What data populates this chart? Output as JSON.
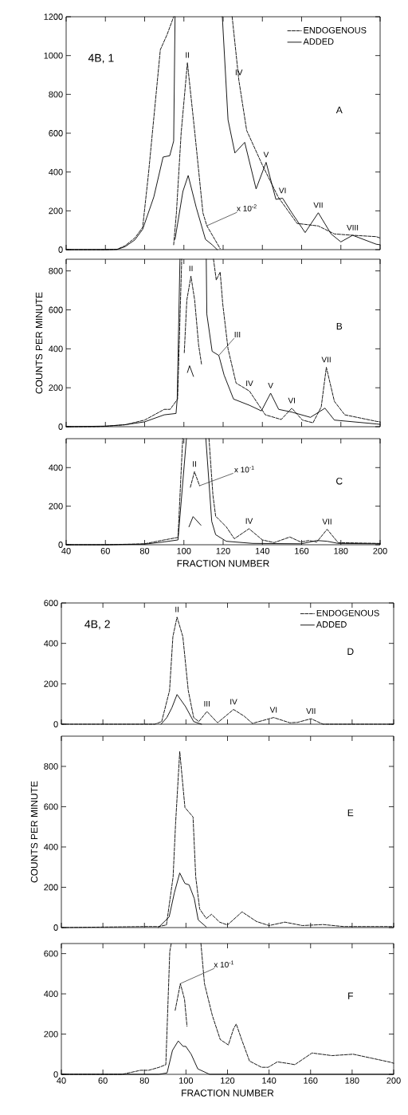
{
  "chart_data": [
    {
      "type": "line",
      "xlim": [
        40,
        200
      ],
      "xticks": [
        40,
        60,
        80,
        100,
        120,
        140,
        160,
        180,
        200
      ],
      "ylim": [
        0,
        1200
      ],
      "yticks": [
        0,
        200,
        400,
        600,
        800,
        1000,
        1200
      ],
      "tick_labels": "y",
      "legend": "top right",
      "series": [
        {
          "name": "ENDOGENOUS",
          "color": "#000000",
          "line_style": "dashed",
          "x": [
            40,
            60,
            66,
            70,
            75,
            79,
            82,
            88,
            91.4,
            94.8
          ],
          "values": [
            0,
            0,
            2,
            20,
            60,
            115,
            395,
            1030,
            1107,
            1200
          ]
        },
        {
          "name": "ADDED",
          "color": "#000000",
          "line_style": "solid",
          "x": [
            40,
            60,
            66,
            70,
            75,
            79,
            84.7,
            89.4,
            92.8,
            94.8,
            95.5
          ],
          "values": [
            0,
            0,
            1,
            15,
            50,
            105,
            272,
            477,
            484,
            560,
            1200
          ]
        },
        {
          "color": "#000000",
          "line_style": "dashed",
          "x": [
            124.6,
            128,
            132,
            140,
            148,
            157.7,
            168.5,
            176.7,
            186,
            198,
            200
          ],
          "values": [
            1200,
            874,
            614,
            436,
            272,
            135,
            122,
            81,
            74,
            67,
            60
          ]
        },
        {
          "color": "#000000",
          "line_style": "solid",
          "x": [
            119.6,
            122.5,
            126,
            131,
            136.8,
            141.9,
            146.9,
            150.3,
            155,
            161.8,
            168.5,
            175,
            180,
            186,
            198,
            200
          ],
          "values": [
            1200,
            669,
            498,
            553,
            313,
            450,
            259,
            265,
            190,
            88,
            190,
            81,
            40,
            74,
            28,
            25
          ]
        },
        {
          "color": "#000000",
          "line_style": "dashed",
          "x": [
            94.8,
            96.2,
            98.6,
            101.8,
            105.6,
            109.7,
            111.7,
            118.5
          ],
          "values": [
            25,
            190,
            600,
            963,
            600,
            190,
            123,
            5
          ]
        },
        {
          "color": "#000000",
          "line_style": "solid",
          "x": [
            95.5,
            99.5,
            102.2,
            106.3,
            111,
            114.4,
            117
          ],
          "values": [
            53,
            300,
            382,
            217,
            53,
            25,
            0
          ]
        }
      ],
      "annotations": [
        "4B, 1",
        "A",
        {
          "text": "II",
          "x": 101.8,
          "y": 963
        },
        {
          "text": "IV",
          "x": 128,
          "y": 874
        },
        {
          "text": "V",
          "x": 141.9,
          "y": 450
        },
        {
          "text": "VI",
          "x": 150.3,
          "y": 265
        },
        {
          "text": "VII",
          "x": 168.5,
          "y": 190
        },
        {
          "text": "VIII",
          "x": 186,
          "y": 74
        },
        {
          "text": "x 10$^{-2}$",
          "x": 111.7,
          "y": 123
        }
      ]
    },
    {
      "type": "line",
      "xlim": [
        40,
        200
      ],
      "xticks": [
        40,
        60,
        80,
        100,
        120,
        140,
        160,
        180,
        200
      ],
      "ylim": [
        0,
        860
      ],
      "yticks": [
        0,
        200,
        400,
        600,
        800
      ],
      "tick_labels": "y",
      "ylabel": "COUNTS PER MINUTE",
      "series": [
        {
          "color": "#000000",
          "line_style": "dashed",
          "x": [
            40,
            55,
            60,
            70,
            80,
            90,
            93,
            96.8,
            98.9
          ],
          "values": [
            0,
            0,
            2,
            10,
            34,
            89,
            89,
            142,
            860
          ]
        },
        {
          "color": "#000000",
          "line_style": "solid",
          "x": [
            40,
            60,
            70,
            80,
            90,
            96,
            96.6,
            98
          ],
          "values": [
            0,
            3,
            10,
            25,
            61,
            68,
            142,
            860
          ]
        },
        {
          "color": "#000000",
          "line_style": "dashed",
          "x": [
            115.1,
            116.5,
            118.5,
            119.8,
            122.5,
            126.6,
            133.4,
            141.5,
            149.6,
            155,
            160.4,
            165.8,
            170,
            172.6,
            176.7,
            182,
            198.3,
            200
          ],
          "values": [
            860,
            753,
            794,
            631,
            400,
            224,
            183,
            61,
            37,
            95,
            34,
            20,
            102,
            305,
            130,
            61,
            27,
            25
          ]
        },
        {
          "color": "#000000",
          "line_style": "solid",
          "x": [
            111.4,
            111.7,
            114.4,
            117.8,
            120.5,
            125.3,
            133.4,
            139.5,
            144.2,
            148.3,
            155,
            164.5,
            171.9,
            176.7,
            198.3,
            200
          ],
          "values": [
            860,
            578,
            387,
            366,
            265,
            142,
            110,
            81,
            172,
            89,
            75,
            48,
            95,
            34,
            14,
            12
          ]
        },
        {
          "color": "#000000",
          "line_style": "dashed",
          "x": [
            100.2,
            101.5,
            103.6,
            105.5,
            107.5,
            109
          ],
          "values": [
            380,
            650,
            773,
            650,
            420,
            320
          ]
        },
        {
          "color": "#000000",
          "line_style": "solid",
          "x": [
            101.8,
            102.9,
            104.9
          ],
          "values": [
            278,
            313,
            258
          ]
        }
      ],
      "annotations": [
        "B",
        {
          "text": "II",
          "x": 103.6,
          "y": 773
        },
        {
          "text": "III",
          "x": 117.8,
          "y": 366
        },
        {
          "text": "IV",
          "x": 133.4,
          "y": 183
        },
        {
          "text": "V",
          "x": 144.2,
          "y": 172
        },
        {
          "text": "VI",
          "x": 155,
          "y": 95
        },
        {
          "text": "VII",
          "x": 172.6,
          "y": 305
        }
      ]
    },
    {
      "type": "line",
      "xlim": [
        40,
        200
      ],
      "xticks": [
        40,
        60,
        80,
        100,
        120,
        140,
        160,
        180,
        200
      ],
      "ylim": [
        0,
        550
      ],
      "yticks": [
        0,
        200,
        400
      ],
      "xlabel": "FRACTION NUMBER",
      "series": [
        {
          "color": "#000000",
          "line_style": "dashed",
          "x": [
            40,
            60,
            80,
            90,
            97,
            99.4
          ],
          "values": [
            0,
            0,
            5,
            25,
            38,
            550
          ]
        },
        {
          "color": "#000000",
          "line_style": "solid",
          "x": [
            40,
            60,
            80,
            90,
            97,
            101.3
          ],
          "values": [
            0,
            0,
            3,
            15,
            25,
            550
          ]
        },
        {
          "color": "#000000",
          "line_style": "dashed",
          "x": [
            112.8,
            114.8,
            116.2,
            121.6,
            125.7,
            133.2,
            140,
            146,
            154,
            159.6,
            163.7,
            167.7,
            173,
            178.6,
            199,
            200
          ],
          "values": [
            550,
            257,
            148,
            93,
            31,
            83,
            25,
            11,
            40,
            14,
            22,
            14,
            80,
            11,
            7,
            7
          ]
        },
        {
          "color": "#000000",
          "line_style": "solid",
          "x": [
            111.2,
            114.2,
            116.2,
            121.6,
            135,
            160,
            167.7,
            173,
            178.6,
            200
          ],
          "values": [
            550,
            121,
            52,
            18,
            7,
            5,
            22,
            18,
            7,
            5
          ]
        },
        {
          "color": "#000000",
          "line_style": "dashed",
          "x": [
            103.3,
            105.4,
            108
          ],
          "values": [
            298,
            379,
            306
          ]
        },
        {
          "color": "#000000",
          "line_style": "solid",
          "x": [
            102.6,
            104.7,
            108.7
          ],
          "values": [
            93,
            146,
            101
          ]
        }
      ],
      "annotations": [
        "C",
        {
          "text": "II",
          "x": 105.4,
          "y": 379
        },
        {
          "text": "IV",
          "x": 133.2,
          "y": 83
        },
        {
          "text": "VII",
          "x": 173,
          "y": 80
        },
        {
          "text": "x 10$^{-1}$",
          "x": 108,
          "y": 306
        }
      ]
    },
    {
      "type": "line",
      "xlim": [
        40,
        200
      ],
      "xticks": [
        40,
        60,
        80,
        100,
        120,
        140,
        160,
        180,
        200
      ],
      "ylim": [
        0,
        600
      ],
      "yticks": [
        0,
        200,
        400,
        600
      ],
      "tick_labels": "y",
      "legend": "top right",
      "series": [
        {
          "name": "ENDOGENOUS",
          "color": "#000000",
          "line_style": "dashed",
          "x": [
            40,
            85,
            88.3,
            92.1,
            93.7,
            95.7,
            98.5,
            101.1,
            103.7,
            106.2,
            110.1,
            115.2,
            122.9,
            128,
            132,
            142.2,
            150,
            153.7,
            160.2,
            166,
            200
          ],
          "values": [
            0,
            0,
            13,
            167,
            433,
            530,
            433,
            167,
            33,
            13,
            63,
            7,
            73,
            40,
            4,
            33,
            7,
            9,
            27,
            0,
            0
          ]
        },
        {
          "name": "ADDED",
          "color": "#000000",
          "line_style": "solid",
          "x": [
            88,
            90.8,
            93.2,
            95.7,
            99.8,
            103.7,
            107.5
          ],
          "values": [
            0,
            33,
            81,
            147,
            87,
            13,
            0
          ]
        }
      ],
      "annotations": [
        "4B, 2",
        "D",
        {
          "text": "II",
          "x": 95.7,
          "y": 530
        },
        {
          "text": "III",
          "x": 110.1,
          "y": 63
        },
        {
          "text": "IV",
          "x": 122.9,
          "y": 73
        },
        {
          "text": "VI",
          "x": 142.2,
          "y": 33
        },
        {
          "text": "VII",
          "x": 160.2,
          "y": 27
        }
      ]
    },
    {
      "type": "line",
      "xlim": [
        40,
        200
      ],
      "xticks": [
        40,
        60,
        80,
        100,
        120,
        140,
        160,
        180,
        200
      ],
      "ylim": [
        0,
        950
      ],
      "yticks": [
        0,
        200,
        400,
        600,
        800
      ],
      "tick_labels": "y",
      "ylabel": "COUNTS PER MINUTE",
      "series": [
        {
          "color": "#000000",
          "line_style": "dashed",
          "x": [
            40,
            79.7,
            86.7,
            90.6,
            93.8,
            95,
            97,
            99.5,
            103.4,
            104.7,
            106.6,
            109.8,
            112.3,
            116.2,
            120,
            127,
            134,
            140,
            147.6,
            156,
            166,
            176,
            200
          ],
          "values": [
            0,
            5,
            5,
            13,
            251,
            517,
            874,
            596,
            549,
            251,
            92,
            45,
            66,
            27,
            13,
            78,
            30,
            10,
            27,
            10,
            15,
            5,
            5
          ]
        },
        {
          "color": "#000000",
          "line_style": "solid",
          "x": [
            86.7,
            91.9,
            94.4,
            97,
            99.5,
            101.5,
            104,
            105.9,
            109.8
          ],
          "values": [
            0,
            53,
            172,
            271,
            219,
            212,
            144,
            38,
            3
          ]
        }
      ],
      "annotations": [
        "E"
      ]
    },
    {
      "type": "line",
      "xlim": [
        40,
        200
      ],
      "xticks": [
        40,
        60,
        80,
        100,
        120,
        140,
        160,
        180,
        200
      ],
      "ylim": [
        0,
        650
      ],
      "yticks": [
        0,
        200,
        400,
        600
      ],
      "xlabel": "FRACTION NUMBER",
      "series": [
        {
          "color": "#000000",
          "line_style": "dashed",
          "x": [
            40,
            69.2,
            78.1,
            82,
            87.1,
            90.3,
            92.2,
            92.9
          ],
          "values": [
            0,
            0,
            20,
            20,
            35,
            48,
            610,
            650
          ]
        },
        {
          "color": "#000000",
          "line_style": "dashed",
          "x": [
            107.2,
            108.9,
            112.7,
            116.5,
            120.4,
            122.9,
            124.2,
            126.8,
            130.6,
            136.4,
            139.6,
            144,
            149.8,
            152.4,
            160.7,
            170.3,
            180.5,
            189.5,
            198.5,
            200
          ],
          "values": [
            650,
            451,
            292,
            173,
            146,
            226,
            250,
            173,
            66,
            35,
            35,
            62,
            53,
            48,
            106,
            93,
            100,
            80,
            60,
            55
          ]
        },
        {
          "color": "#000000",
          "line_style": "solid",
          "x": [
            40,
            87,
            90.9,
            93.5,
            96.3,
            98.6,
            99.9,
            102.5,
            105.7,
            111.4,
            200
          ],
          "values": [
            0,
            0,
            7,
            119,
            166,
            139,
            139,
            100,
            27,
            0,
            0
          ]
        },
        {
          "color": "#000000",
          "line_style": "dashed",
          "x": [
            94.8,
            97.3,
            99.3,
            100.5
          ],
          "values": [
            318,
            451,
            373,
            239
          ]
        }
      ],
      "annotations": [
        "F",
        {
          "text": "x 10$^{-1}$",
          "x": 97.3,
          "y": 451
        }
      ]
    }
  ]
}
